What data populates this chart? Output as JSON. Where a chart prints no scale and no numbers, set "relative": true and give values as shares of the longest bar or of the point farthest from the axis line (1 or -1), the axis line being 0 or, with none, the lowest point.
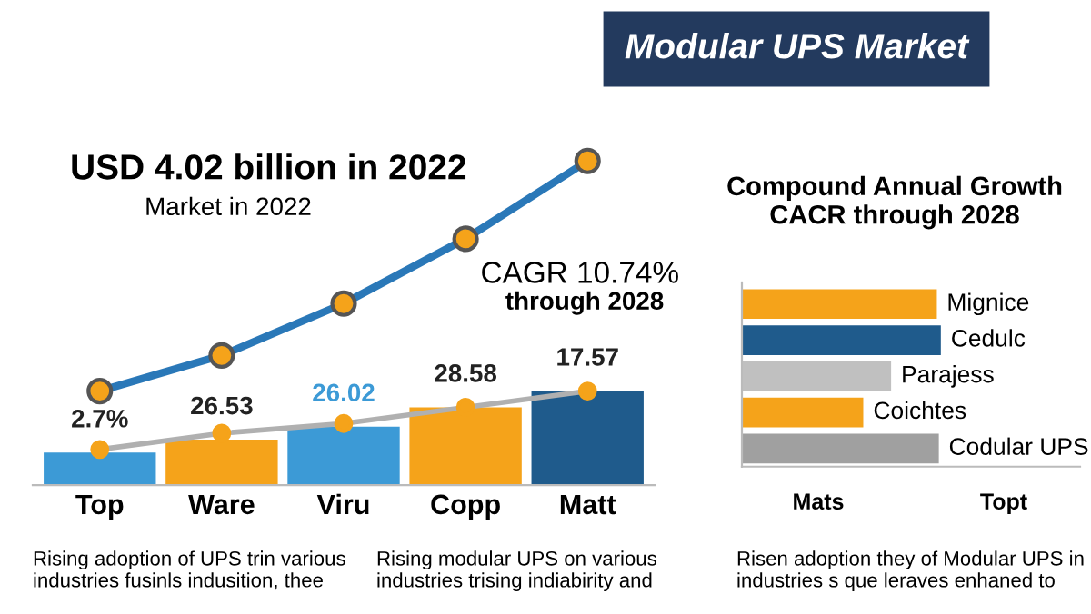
{
  "chart_data": [
    {
      "type": "bar",
      "relative": true,
      "title": "USD 4.02 billion in 2022",
      "subtitle": "Market in 2022",
      "categories": [
        "Top",
        "Ware",
        "Viru",
        "Copp",
        "Matt"
      ],
      "series": [
        {
          "type": "bar",
          "colors": [
            "#3c9ad6",
            "#f5a31a",
            "#3c9ad6",
            "#f5a31a",
            "#1f5b8c"
          ],
          "values": [
            0.1,
            0.14,
            0.18,
            0.24,
            0.29
          ]
        },
        {
          "type": "line",
          "color": "#2a78b8",
          "values": [
            0.29,
            0.4,
            0.56,
            0.76,
            1.0
          ]
        },
        {
          "type": "line",
          "color": "#b0b0b0",
          "values": [
            0.11,
            0.16,
            0.19,
            0.24,
            0.29
          ]
        }
      ],
      "marker": "circle",
      "line_style": "solid",
      "grid": false,
      "legend": false,
      "annotations": [
        "Modular UPS Market",
        "CAGR 10.74%",
        "through 2028",
        "Rising adoption of UPS trin various\nindustries fusinls indusition, thee",
        "Rising modular UPS on various\nindustries trising indiabirity and",
        "2.7%",
        "26.53",
        "26.02",
        "28.58",
        "17.57"
      ]
    },
    {
      "type": "bar",
      "relative": true,
      "orientation": "horizontal",
      "title": "Compound Annual Growth\nCACR through 2028",
      "categories": [
        "Mignice",
        "Cedulc",
        "Parajess",
        "Coichtes",
        "Codular UPS"
      ],
      "colors": [
        "#f5a31a",
        "#1f5b8c",
        "#c0c0c0",
        "#f5a31a",
        "#a0a0a0"
      ],
      "values": [
        0.98,
        1.0,
        0.75,
        0.61,
        0.99
      ],
      "grid": false,
      "legend": false,
      "annotations": [
        "Mats",
        "Topt",
        "Risen adoption they of Modular UPS in\nindustries s que leraves enhaned to"
      ]
    }
  ]
}
